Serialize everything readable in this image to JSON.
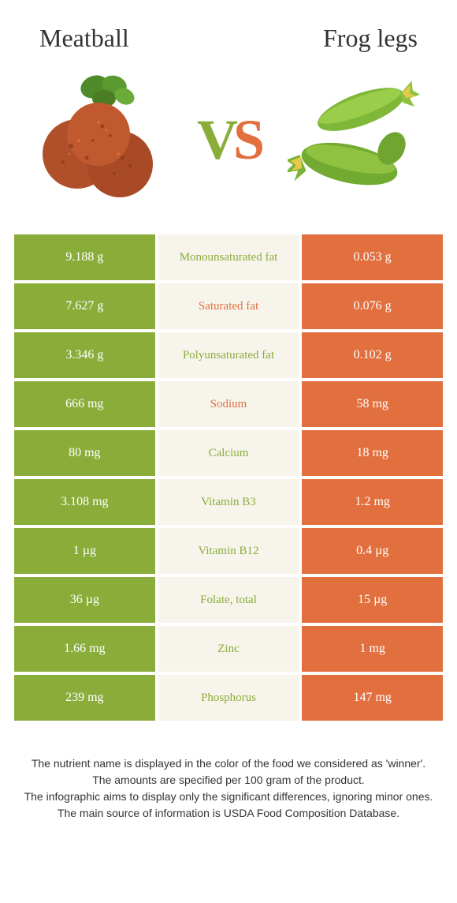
{
  "header": {
    "left_title": "Meatball",
    "right_title": "Frog legs"
  },
  "vs": {
    "v": "V",
    "s": "S"
  },
  "colors": {
    "left": "#8aad3a",
    "right": "#e2703f",
    "mid_bg": "#f7f4ec",
    "page_bg": "#ffffff",
    "text": "#333333"
  },
  "rows": [
    {
      "left": "9.188 g",
      "label": "Monounsaturated fat",
      "right": "0.053 g",
      "winner": "green"
    },
    {
      "left": "7.627 g",
      "label": "Saturated fat",
      "right": "0.076 g",
      "winner": "orange"
    },
    {
      "left": "3.346 g",
      "label": "Polyunsaturated fat",
      "right": "0.102 g",
      "winner": "green"
    },
    {
      "left": "666 mg",
      "label": "Sodium",
      "right": "58 mg",
      "winner": "orange"
    },
    {
      "left": "80 mg",
      "label": "Calcium",
      "right": "18 mg",
      "winner": "green"
    },
    {
      "left": "3.108 mg",
      "label": "Vitamin B3",
      "right": "1.2 mg",
      "winner": "green"
    },
    {
      "left": "1 µg",
      "label": "Vitamin B12",
      "right": "0.4 µg",
      "winner": "green"
    },
    {
      "left": "36 µg",
      "label": "Folate, total",
      "right": "15 µg",
      "winner": "green"
    },
    {
      "left": "1.66 mg",
      "label": "Zinc",
      "right": "1 mg",
      "winner": "green"
    },
    {
      "left": "239 mg",
      "label": "Phosphorus",
      "right": "147 mg",
      "winner": "green"
    }
  ],
  "footnotes": [
    "The nutrient name is displayed in the color of the food we considered as 'winner'.",
    "The amounts are specified per 100 gram of the product.",
    "The infographic aims to display only the significant differences, ignoring minor ones.",
    "The main source of information is USDA Food Composition Database."
  ]
}
